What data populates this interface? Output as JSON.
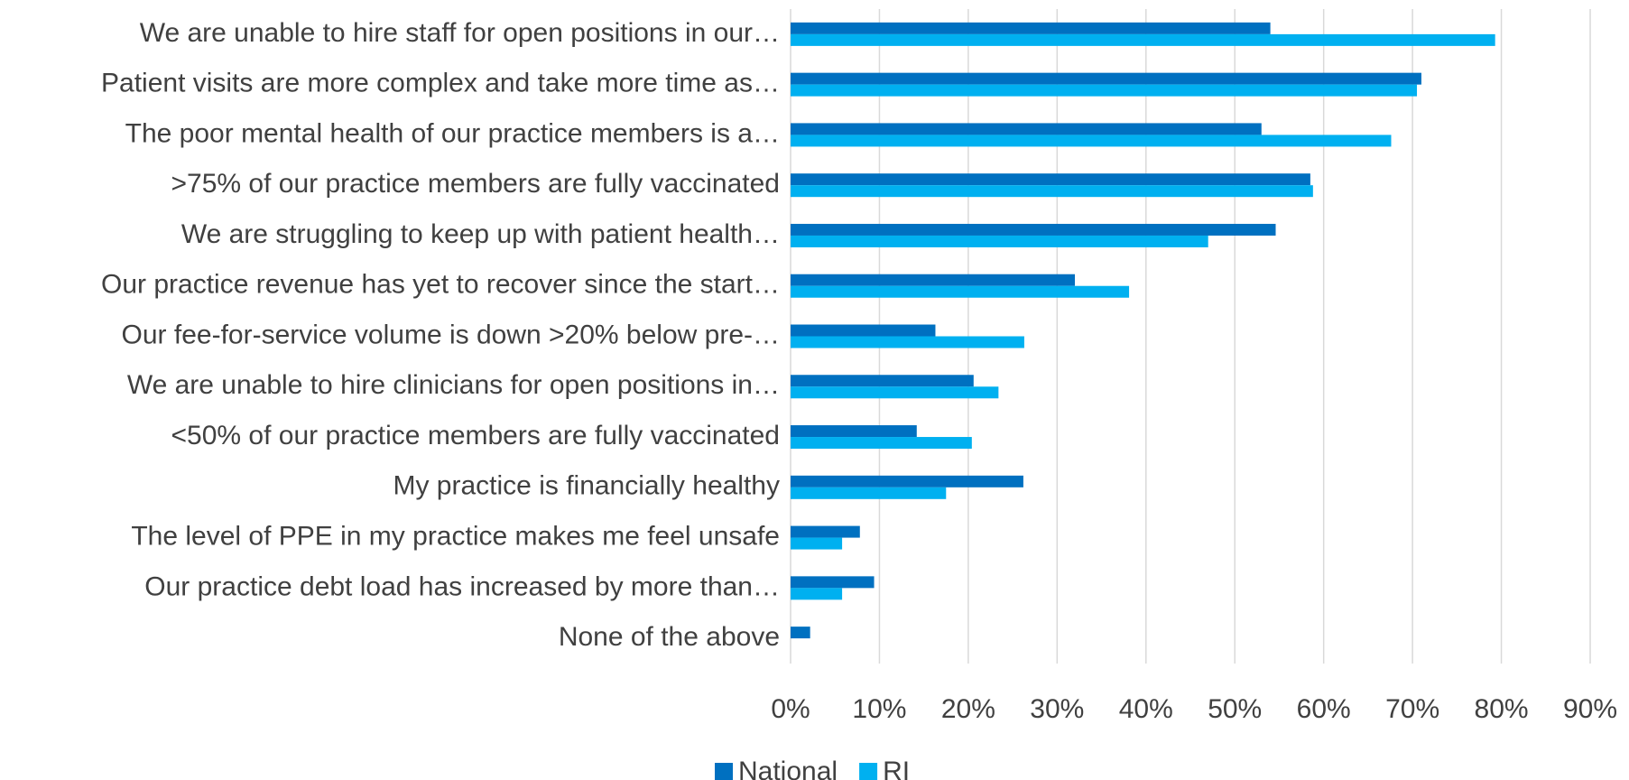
{
  "chart_data": {
    "type": "hbar",
    "categories": [
      "We are unable to hire staff for open positions in our…",
      "Patient visits are more complex and take more time as…",
      "The poor mental health of our practice members is a…",
      ">75% of our practice members are fully vaccinated",
      "We are struggling to keep up with patient health…",
      "Our practice revenue has yet to recover since the start…",
      "Our fee-for-service volume is down >20% below pre-…",
      "We are unable to hire clinicians for open positions in…",
      "<50% of our practice members are fully vaccinated",
      "My practice is financially healthy",
      "The level of PPE in my practice makes me feel unsafe",
      "Our practice debt load has increased by more than…",
      "None of the above"
    ],
    "series": [
      {
        "name": "National",
        "color": "#0070c0",
        "values": [
          54,
          71,
          53,
          58.5,
          54.6,
          32,
          16.3,
          20.6,
          14.2,
          26.2,
          7.8,
          9.4,
          2.2
        ]
      },
      {
        "name": "RI",
        "color": "#00b0f0",
        "values": [
          79.3,
          70.5,
          67.6,
          58.8,
          47,
          38.1,
          26.3,
          23.4,
          20.4,
          17.5,
          5.8,
          5.8,
          0
        ]
      }
    ],
    "xlim": [
      0,
      90
    ],
    "xticks": [
      {
        "value": 0,
        "label": "0%"
      },
      {
        "value": 10,
        "label": "10%"
      },
      {
        "value": 20,
        "label": "20%"
      },
      {
        "value": 30,
        "label": "30%"
      },
      {
        "value": 40,
        "label": "40%"
      },
      {
        "value": 50,
        "label": "50%"
      },
      {
        "value": 60,
        "label": "60%"
      },
      {
        "value": 70,
        "label": "70%"
      },
      {
        "value": 80,
        "label": "80%"
      },
      {
        "value": 90,
        "label": "90%"
      }
    ],
    "grid": true,
    "legend": "bottom"
  }
}
